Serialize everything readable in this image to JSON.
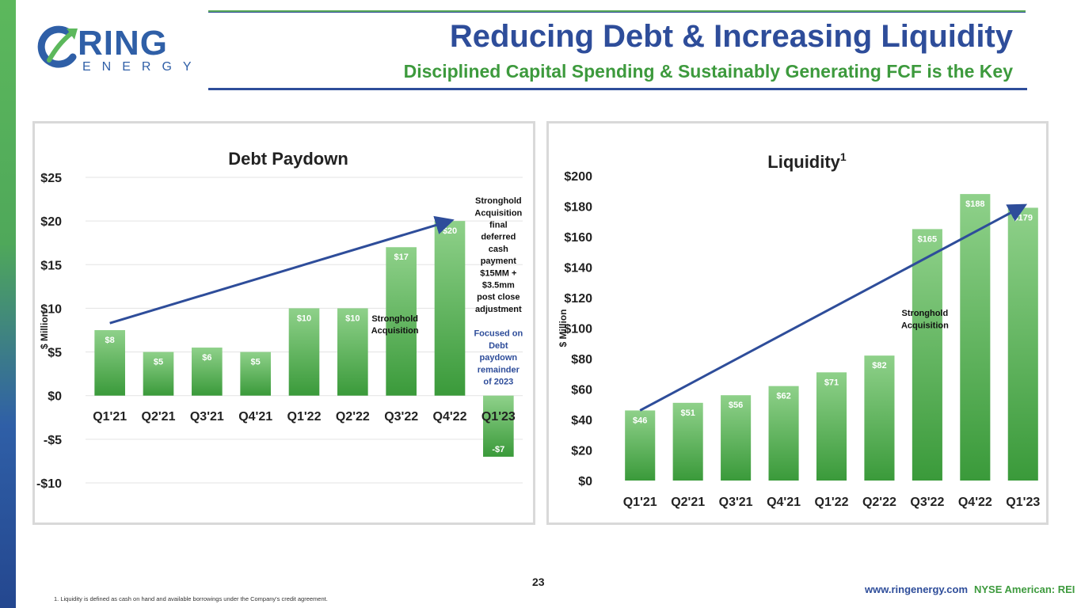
{
  "header": {
    "title": "Reducing Debt & Increasing Liquidity",
    "subtitle": "Disciplined Capital Spending & Sustainably Generating FCF is the Key"
  },
  "logo": {
    "word": "RING",
    "sub": "ENERGY"
  },
  "colors": {
    "blue": "#2e4d9a",
    "green": "#3d9a3d",
    "bar_top": "#8fd18a",
    "bar_bottom": "#3a9a3a"
  },
  "chart_data": [
    {
      "type": "bar",
      "title": "Debt Paydown",
      "title_sup": "",
      "ylabel": "$ Million",
      "categories": [
        "Q1'21",
        "Q2'21",
        "Q3'21",
        "Q4'21",
        "Q1'22",
        "Q2'22",
        "Q3'22",
        "Q4'22",
        "Q1'23"
      ],
      "values": [
        7.5,
        5,
        5.5,
        5,
        10,
        10,
        17,
        20,
        -7
      ],
      "data_labels": [
        "$8",
        "$5",
        "$6",
        "$5",
        "$10",
        "$10",
        "$17",
        "$20",
        "-$7"
      ],
      "ylim": [
        -10,
        25
      ],
      "yticks": [
        -10,
        -5,
        0,
        5,
        10,
        15,
        20,
        25
      ],
      "ytick_labels": [
        "-$10",
        "-$5",
        "$0",
        "$5",
        "$10",
        "$15",
        "$20",
        "$25"
      ],
      "grid": true,
      "trend_arrow": {
        "from": [
          0,
          8.3
        ],
        "to": [
          7,
          20
        ]
      },
      "annotations": [
        {
          "text": [
            "Stronghold",
            "Acquisition"
          ],
          "at_category": 6,
          "y": 8.5,
          "color": "#111111"
        },
        {
          "text": [
            "Stronghold",
            "Acquisition",
            "final",
            "deferred",
            "cash",
            "payment",
            "$15MM +",
            "$3.5mm",
            "post close",
            "adjustment"
          ],
          "at_category": 8,
          "y": 22,
          "color": "#111111"
        },
        {
          "text": [
            "Focused on",
            "Debt",
            "paydown",
            "remainder",
            "of 2023"
          ],
          "at_category": 8,
          "y": 6.8,
          "color": "#2e4d9a"
        }
      ]
    },
    {
      "type": "bar",
      "title": "Liquidity",
      "title_sup": "1",
      "ylabel": "$ Million",
      "categories": [
        "Q1'21",
        "Q2'21",
        "Q3'21",
        "Q4'21",
        "Q1'22",
        "Q2'22",
        "Q3'22",
        "Q4'22",
        "Q1'23"
      ],
      "values": [
        46,
        51,
        56,
        62,
        71,
        82,
        165,
        188,
        179
      ],
      "data_labels": [
        "$46",
        "$51",
        "$56",
        "$62",
        "$71",
        "$82",
        "$165",
        "$188",
        "$179"
      ],
      "ylim": [
        0,
        200
      ],
      "yticks": [
        0,
        20,
        40,
        60,
        80,
        100,
        120,
        140,
        160,
        180,
        200
      ],
      "ytick_labels": [
        "$0",
        "$20",
        "$40",
        "$60",
        "$80",
        "$100",
        "$120",
        "$140",
        "$160",
        "$180",
        "$200"
      ],
      "grid": false,
      "trend_arrow": {
        "from": [
          0,
          46
        ],
        "to": [
          8,
          180
        ]
      },
      "annotations": [
        {
          "text": [
            "Stronghold",
            "Acquisition"
          ],
          "at_category": 6,
          "y": 108,
          "color": "#111111"
        }
      ]
    }
  ],
  "footer": {
    "page_number": "23",
    "footnote": "1.     Liquidity is defined as cash on hand and available borrowings under the Company's credit agreement.",
    "website": "www.ringenergy.com",
    "exchange": "NYSE American: REI"
  }
}
